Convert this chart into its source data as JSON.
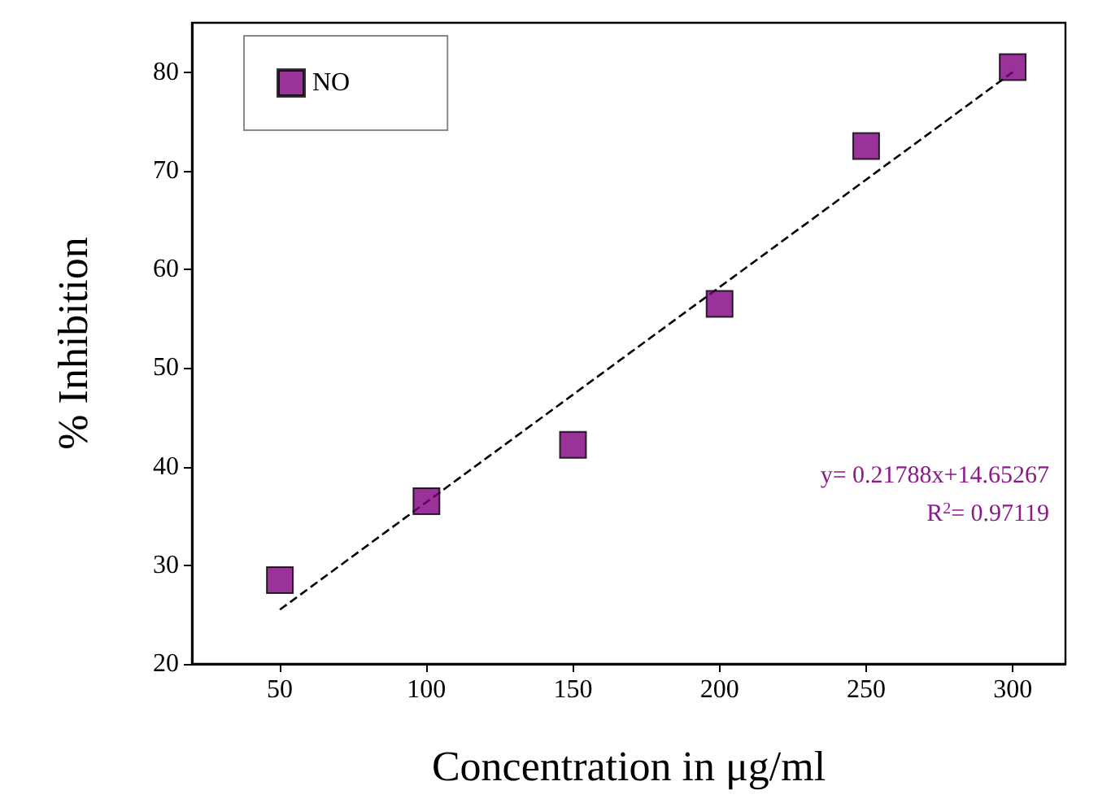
{
  "chart_data": {
    "type": "scatter",
    "xlabel": "Concentration in μg/ml",
    "ylabel": "% Inhibition",
    "xlim": [
      20,
      318
    ],
    "xticks": [
      50,
      100,
      150,
      200,
      250,
      300
    ],
    "ylim": [
      20,
      85
    ],
    "yticks": [
      20,
      30,
      40,
      50,
      60,
      70,
      80
    ],
    "marker": "square",
    "legend": "top left",
    "grid": false,
    "series": [
      {
        "name": "NO",
        "type": "scatter",
        "color": "#800080",
        "x": [
          50,
          100,
          150,
          200,
          250,
          300
        ],
        "values": [
          28.5,
          36.5,
          42.2,
          56.5,
          72.5,
          80.5
        ]
      },
      {
        "type": "line",
        "color": "#000000",
        "line_style": "dashed",
        "marker": "none",
        "x": [
          50,
          300
        ],
        "values": [
          25.5,
          80.0
        ]
      }
    ],
    "annotations": [
      "y= 0.21788x+14.65267",
      "R$^{2}$= 0.97119"
    ]
  }
}
